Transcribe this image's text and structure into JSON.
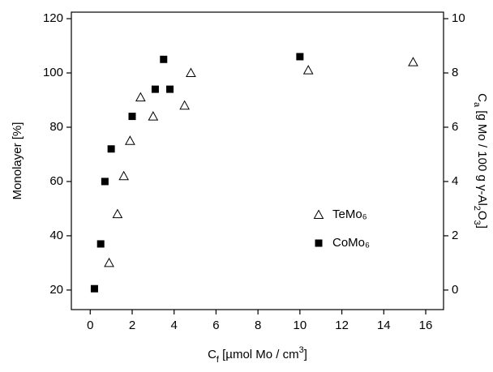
{
  "chart_data": {
    "type": "scatter",
    "xlabel": [
      {
        "text": "C"
      },
      {
        "text": "f",
        "sub": true
      },
      {
        "text": " [µmol Mo / cm"
      },
      {
        "text": "3",
        "sup": true
      },
      {
        "text": "]"
      }
    ],
    "ylabel": [
      {
        "text": "Monolayer [%]"
      }
    ],
    "y2label": [
      {
        "text": "C"
      },
      {
        "text": "a",
        "sub": true
      },
      {
        "text": " [g Mo / 100 g γ-Al"
      },
      {
        "text": "2",
        "sub": true
      },
      {
        "text": "O"
      },
      {
        "text": "3",
        "sub": true
      },
      {
        "text": "]"
      }
    ],
    "xlim": [
      -0.9,
      16.85
    ],
    "xticks": [
      0,
      2,
      4,
      6,
      8,
      10,
      12,
      14,
      16
    ],
    "ylim": [
      12.8,
      122.4
    ],
    "yticks": [
      20,
      40,
      60,
      80,
      100,
      120
    ],
    "y2lim": [
      -0.72,
      10.24
    ],
    "y2ticks": [
      0,
      2,
      4,
      6,
      8,
      10
    ],
    "series": [
      {
        "name": "TeMo₆",
        "marker": "open-triangle",
        "color": "#000000",
        "x": [
          0.9,
          1.3,
          1.6,
          1.9,
          2.4,
          3.0,
          4.5,
          4.8,
          10.4,
          15.4
        ],
        "values": [
          30,
          48,
          62,
          75,
          91,
          84,
          88,
          100,
          101,
          104
        ]
      },
      {
        "name": "CoMo₆",
        "marker": "filled-square",
        "color": "#000000",
        "x": [
          0.2,
          0.5,
          0.7,
          1.0,
          2.0,
          3.1,
          3.5,
          3.8,
          10.0
        ],
        "values": [
          20.5,
          37,
          60,
          72,
          84,
          94,
          105,
          94,
          106
        ]
      }
    ]
  }
}
